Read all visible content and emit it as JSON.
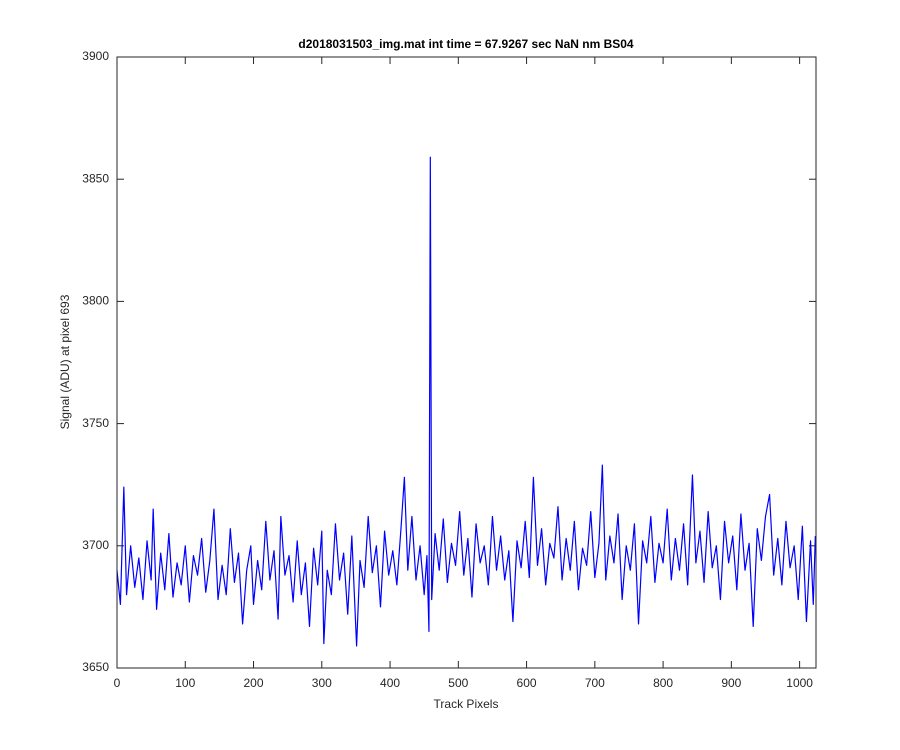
{
  "chart_data": {
    "type": "line",
    "title": "d2018031503_img.mat int time = 67.9267 sec  NaN nm BS04",
    "xlabel": "Track Pixels",
    "ylabel": "Signal (ADU) at pixel 693",
    "xlim": [
      0,
      1024
    ],
    "ylim": [
      3650,
      3900
    ],
    "xticks": [
      0,
      100,
      200,
      300,
      400,
      500,
      600,
      700,
      800,
      900,
      1000
    ],
    "yticks": [
      3650,
      3700,
      3750,
      3800,
      3850,
      3900
    ],
    "x": [
      0,
      5,
      10,
      14,
      20,
      26,
      32,
      38,
      44,
      50,
      53,
      58,
      64,
      70,
      76,
      82,
      88,
      94,
      100,
      106,
      112,
      118,
      124,
      130,
      136,
      142,
      148,
      154,
      160,
      166,
      172,
      178,
      184,
      190,
      196,
      200,
      206,
      212,
      218,
      224,
      230,
      236,
      240,
      246,
      252,
      258,
      264,
      270,
      276,
      282,
      288,
      294,
      300,
      303,
      308,
      314,
      320,
      326,
      332,
      338,
      344,
      351,
      356,
      362,
      368,
      374,
      380,
      386,
      392,
      398,
      404,
      410,
      416,
      421,
      426,
      432,
      438,
      444,
      450,
      454,
      457,
      459,
      461,
      466,
      472,
      478,
      484,
      490,
      496,
      502,
      508,
      514,
      520,
      526,
      532,
      538,
      544,
      550,
      556,
      562,
      568,
      574,
      580,
      586,
      592,
      598,
      604,
      610,
      616,
      622,
      628,
      634,
      640,
      646,
      652,
      658,
      664,
      670,
      676,
      682,
      688,
      694,
      700,
      706,
      711,
      716,
      722,
      728,
      734,
      740,
      746,
      752,
      758,
      764,
      770,
      776,
      782,
      788,
      794,
      800,
      806,
      812,
      818,
      824,
      830,
      836,
      843,
      848,
      854,
      860,
      866,
      872,
      878,
      884,
      890,
      896,
      902,
      908,
      914,
      920,
      926,
      932,
      938,
      944,
      950,
      956,
      962,
      968,
      974,
      980,
      986,
      992,
      998,
      1004,
      1010,
      1016,
      1020,
      1023
    ],
    "series": [
      {
        "name": "signal",
        "color": "#0000ff",
        "values": [
          3690,
          3676,
          3724,
          3680,
          3700,
          3683,
          3695,
          3678,
          3702,
          3686,
          3715,
          3674,
          3697,
          3682,
          3705,
          3679,
          3693,
          3684,
          3700,
          3677,
          3696,
          3688,
          3703,
          3681,
          3694,
          3715,
          3678,
          3692,
          3680,
          3707,
          3685,
          3697,
          3668,
          3690,
          3700,
          3676,
          3694,
          3682,
          3710,
          3686,
          3698,
          3670,
          3712,
          3688,
          3696,
          3677,
          3702,
          3680,
          3693,
          3667,
          3699,
          3684,
          3706,
          3660,
          3690,
          3680,
          3709,
          3686,
          3697,
          3672,
          3704,
          3659,
          3694,
          3683,
          3712,
          3689,
          3700,
          3675,
          3706,
          3688,
          3698,
          3684,
          3707,
          3728,
          3690,
          3712,
          3686,
          3700,
          3680,
          3696,
          3665,
          3859,
          3678,
          3705,
          3690,
          3711,
          3685,
          3701,
          3692,
          3714,
          3688,
          3703,
          3679,
          3709,
          3693,
          3700,
          3684,
          3712,
          3690,
          3704,
          3686,
          3698,
          3669,
          3702,
          3691,
          3710,
          3687,
          3728,
          3692,
          3707,
          3684,
          3701,
          3695,
          3716,
          3686,
          3703,
          3690,
          3710,
          3682,
          3699,
          3692,
          3714,
          3687,
          3701,
          3733,
          3686,
          3704,
          3693,
          3713,
          3678,
          3700,
          3690,
          3709,
          3668,
          3702,
          3693,
          3712,
          3685,
          3701,
          3693,
          3715,
          3686,
          3703,
          3690,
          3709,
          3684,
          3729,
          3693,
          3706,
          3685,
          3714,
          3691,
          3700,
          3678,
          3710,
          3693,
          3704,
          3682,
          3713,
          3690,
          3701,
          3667,
          3707,
          3694,
          3712,
          3721,
          3688,
          3703,
          3684,
          3710,
          3691,
          3700,
          3678,
          3708,
          3669,
          3702,
          3676,
          3704
        ]
      }
    ]
  }
}
